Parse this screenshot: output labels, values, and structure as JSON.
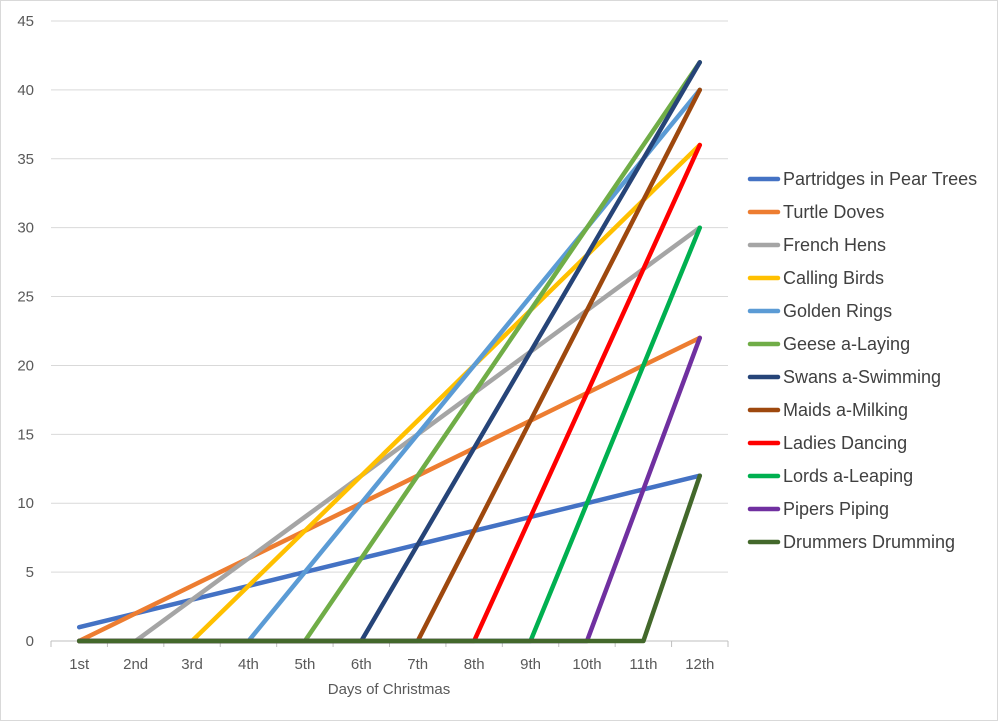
{
  "chart_data": {
    "type": "line",
    "title": "",
    "xlabel": "Days of Christmas",
    "ylabel": "",
    "categories": [
      "1st",
      "2nd",
      "3rd",
      "4th",
      "5th",
      "6th",
      "7th",
      "8th",
      "9th",
      "10th",
      "11th",
      "12th"
    ],
    "ylim": [
      0,
      45
    ],
    "yticks": [
      0,
      5,
      10,
      15,
      20,
      25,
      30,
      35,
      40,
      45
    ],
    "grid": true,
    "legend_position": "right",
    "series": [
      {
        "name": "Partridges in Pear Trees",
        "color": "#4472c4",
        "values": [
          1,
          2,
          3,
          4,
          5,
          6,
          7,
          8,
          9,
          10,
          11,
          12
        ]
      },
      {
        "name": "Turtle Doves",
        "color": "#ed7d31",
        "values": [
          0,
          2,
          4,
          6,
          8,
          10,
          12,
          14,
          16,
          18,
          20,
          22
        ]
      },
      {
        "name": "French Hens",
        "color": "#a5a5a5",
        "values": [
          0,
          0,
          3,
          6,
          9,
          12,
          15,
          18,
          21,
          24,
          27,
          30
        ]
      },
      {
        "name": "Calling Birds",
        "color": "#ffc000",
        "values": [
          0,
          0,
          0,
          4,
          8,
          12,
          16,
          20,
          24,
          28,
          32,
          36
        ]
      },
      {
        "name": "Golden Rings",
        "color": "#5b9bd5",
        "values": [
          0,
          0,
          0,
          0,
          5,
          10,
          15,
          20,
          25,
          30,
          35,
          40
        ]
      },
      {
        "name": "Geese a-Laying",
        "color": "#70ad47",
        "values": [
          0,
          0,
          0,
          0,
          0,
          6,
          12,
          18,
          24,
          30,
          36,
          42
        ]
      },
      {
        "name": "Swans a-Swimming",
        "color": "#264478",
        "values": [
          0,
          0,
          0,
          0,
          0,
          0,
          7,
          14,
          21,
          28,
          35,
          42
        ]
      },
      {
        "name": "Maids a-Milking",
        "color": "#9e480e",
        "values": [
          0,
          0,
          0,
          0,
          0,
          0,
          0,
          8,
          16,
          24,
          32,
          40
        ]
      },
      {
        "name": "Ladies Dancing",
        "color": "#ff0000",
        "values": [
          0,
          0,
          0,
          0,
          0,
          0,
          0,
          0,
          9,
          18,
          27,
          36
        ]
      },
      {
        "name": "Lords a-Leaping",
        "color": "#00b050",
        "values": [
          0,
          0,
          0,
          0,
          0,
          0,
          0,
          0,
          0,
          10,
          20,
          30
        ]
      },
      {
        "name": "Pipers Piping",
        "color": "#7030a0",
        "values": [
          0,
          0,
          0,
          0,
          0,
          0,
          0,
          0,
          0,
          0,
          11,
          22
        ]
      },
      {
        "name": "Drummers Drumming",
        "color": "#43682b",
        "values": [
          0,
          0,
          0,
          0,
          0,
          0,
          0,
          0,
          0,
          0,
          0,
          12
        ]
      }
    ]
  }
}
